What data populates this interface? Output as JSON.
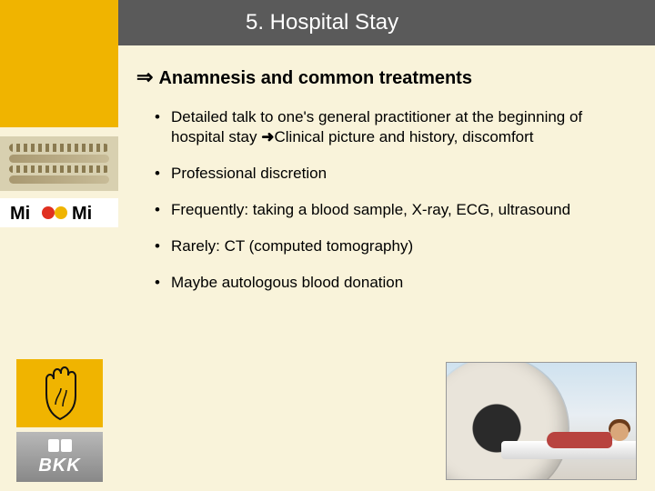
{
  "colors": {
    "background": "#f9f3da",
    "gold": "#f0b400",
    "titlebar": "#5a5a5a",
    "text": "#000000"
  },
  "sidebar": {
    "logo_text": "Mi Mi",
    "bkk_label": "BKK"
  },
  "title": "5. Hospital Stay",
  "heading_arrow": "⇒",
  "heading": "Anamnesis and common treatments",
  "inline_arrow": "➜",
  "bullets": [
    {
      "pre": "Detailed talk to one's general practitioner at  the beginning of hospital stay ",
      "post": "Clinical picture and history, discomfort",
      "has_arrow": true
    },
    {
      "pre": "Professional discretion",
      "post": "",
      "has_arrow": false
    },
    {
      "pre": "Frequently: taking a blood sample, X-ray, ECG, ultrasound",
      "post": "",
      "has_arrow": false
    },
    {
      "pre": "Rarely: CT (computed tomography)",
      "post": "",
      "has_arrow": false
    },
    {
      "pre": "Maybe autologous blood donation",
      "post": "",
      "has_arrow": false
    }
  ],
  "photo": {
    "description": "Patient lying on CT / MRI scanner bed",
    "background_gradient": [
      "#cfe2ef",
      "#e8eef3",
      "#d8d2c8"
    ]
  }
}
